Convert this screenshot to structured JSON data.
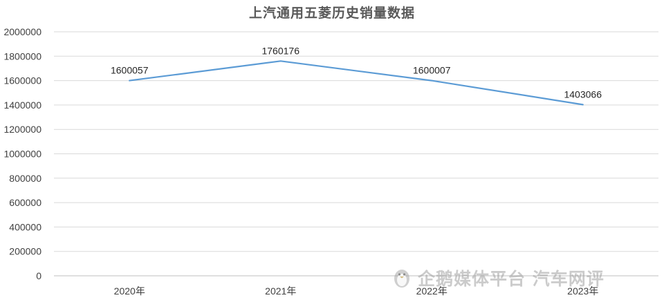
{
  "chart_data": {
    "type": "line",
    "title": "上汽通用五菱历史销量数据",
    "xlabel": "",
    "ylabel": "",
    "categories": [
      "2020年",
      "2021年",
      "2022年",
      "2023年"
    ],
    "series": [
      {
        "values": [
          1600057,
          1760176,
          1600007,
          1403066
        ]
      }
    ],
    "ylim": [
      0,
      2000000
    ],
    "yticks": [
      "0",
      "200000",
      "400000",
      "600000",
      "800000",
      "1000000",
      "1200000",
      "1400000",
      "1600000",
      "1800000",
      "2000000"
    ],
    "data_labels": [
      "1600057",
      "1760176",
      "1600007",
      "1403066"
    ],
    "grid": true,
    "legend": "none",
    "colors": {
      "line": "#5B9BD5",
      "grid": "#D9D9D9",
      "text": "#404040"
    }
  },
  "watermark": {
    "text": "企鹅媒体平台 汽车网评",
    "icon": "penguin-icon"
  }
}
